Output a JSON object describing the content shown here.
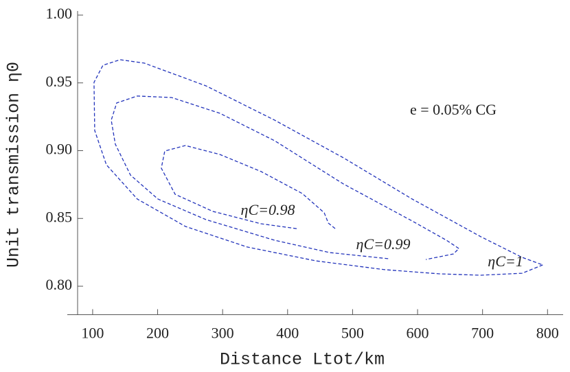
{
  "chart_data": {
    "type": "contour",
    "x_label": "Distance Ltot/km",
    "y_label": "Unit transmission η0",
    "annotation": "e = 0.05% CG",
    "xlim": [
      61,
      824
    ],
    "ylim": [
      0.779,
      1.0
    ],
    "xticks": [
      100,
      200,
      300,
      400,
      500,
      600,
      700,
      800
    ],
    "yticks": [
      {
        "value": 0.8,
        "label": "0.80"
      },
      {
        "value": 0.85,
        "label": "0.85"
      },
      {
        "value": 0.9,
        "label": "0.90"
      },
      {
        "value": 0.95,
        "label": "0.95"
      },
      {
        "value": 1.0,
        "label": "1.00"
      }
    ],
    "series": [
      {
        "name": "ηC=0.98",
        "color": "#2233bb",
        "x": [
          414.0,
          359.1,
          285.0,
          226.9,
          205.7,
          211.0,
          242.8,
          295.6,
          359.1,
          422.5,
          456.3,
          462.7,
          473.3
        ],
        "y": [
          0.8425,
          0.8461,
          0.8552,
          0.8678,
          0.8871,
          0.8997,
          0.9038,
          0.8972,
          0.8846,
          0.8684,
          0.8542,
          0.8466,
          0.8425
        ]
      },
      {
        "name": "ηC=0.99",
        "color": "#2233bb",
        "x": [
          554.7,
          464.8,
          380.2,
          274.5,
          200.5,
          158.2,
          134.9,
          128.6,
          137.0,
          168.7,
          221.6,
          295.6,
          380.2,
          486.0,
          591.7,
          644.6,
          663.6,
          655.1,
          612.8
        ],
        "y": [
          0.8203,
          0.8248,
          0.8339,
          0.8491,
          0.8643,
          0.882,
          0.9048,
          0.9225,
          0.9352,
          0.9403,
          0.9392,
          0.9276,
          0.9073,
          0.8754,
          0.8481,
          0.8339,
          0.8278,
          0.8238,
          0.8197
        ]
      },
      {
        "name": "ηC=1",
        "color": "#2233bb",
        "x": [
          792.6,
          760.9,
          697.4,
          634.0,
          549.4,
          443.7,
          337.9,
          242.8,
          168.7,
          121.1,
          103.2,
          102.1,
          115.9,
          142.3,
          179.3,
          274.5,
          380.2,
          486.0,
          591.7,
          697.4,
          760.9,
          792.6
        ],
        "y": [
          0.8157,
          0.8096,
          0.8081,
          0.8091,
          0.8122,
          0.8187,
          0.8289,
          0.8441,
          0.8643,
          0.8896,
          0.9149,
          0.9504,
          0.963,
          0.9671,
          0.9646,
          0.9478,
          0.9225,
          0.8947,
          0.8643,
          0.8365,
          0.8213,
          0.8157
        ]
      }
    ],
    "label_color": "#e00000",
    "annotation_color": "#10109a"
  }
}
